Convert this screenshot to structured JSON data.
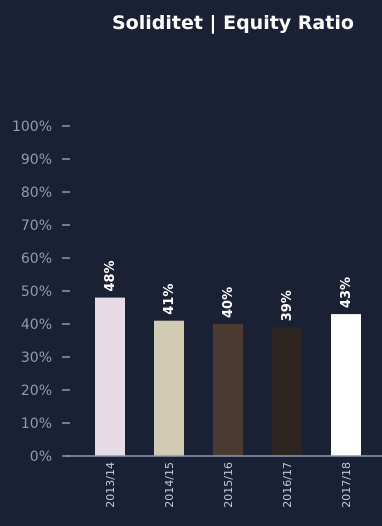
{
  "chart_data": {
    "type": "bar",
    "title": "Soliditet | Equity Ratio",
    "categories": [
      "2013/14",
      "2014/15",
      "2015/16",
      "2016/17",
      "2017/18"
    ],
    "values": [
      48,
      41,
      40,
      39,
      43
    ],
    "data_labels": [
      "48%",
      "41%",
      "40%",
      "39%",
      "43%"
    ],
    "yticks": [
      "0%",
      "10%",
      "20%",
      "30%",
      "40%",
      "50%",
      "60%",
      "70%",
      "80%",
      "90%",
      "100%"
    ],
    "ylim": [
      0,
      100
    ],
    "xlabel": "",
    "ylabel": "",
    "grid": false,
    "legend": "none",
    "bar_colors": [
      "#e6dbe5",
      "#d2cbb4",
      "#4a3a30",
      "#2d2520",
      "#ffffff"
    ]
  }
}
